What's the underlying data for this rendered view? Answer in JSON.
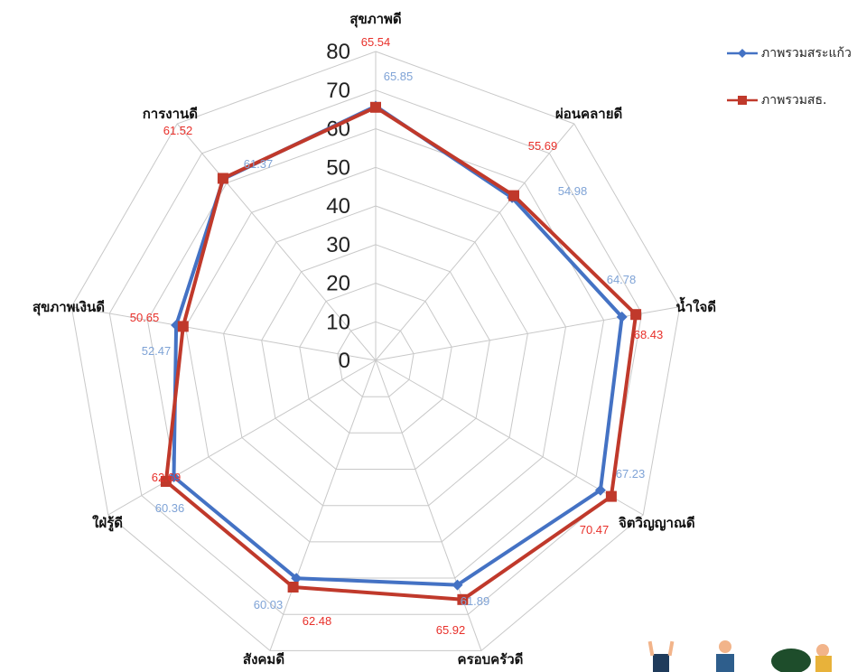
{
  "chart_data": {
    "type": "radar",
    "categories": [
      "สุขภาพดี",
      "ผ่อนคลายดี",
      "น้ำใจดี",
      "จิตวิญญาณดี",
      "ครอบครัวดี",
      "สังคมดี",
      "ใฝ่รู้ดี",
      "สุขภาพเงินดี",
      "การงานดี"
    ],
    "radial_ticks": [
      "0",
      "10",
      "20",
      "30",
      "40",
      "50",
      "60",
      "70",
      "80"
    ],
    "rlim": [
      0,
      80
    ],
    "grid": true,
    "legend_position": "top-right",
    "series": [
      {
        "name": "ภาพรวมสระแก้ว",
        "color": "#4472C4",
        "label_color": "#7FA3D6",
        "marker": "diamond",
        "values": [
          65.85,
          54.98,
          64.78,
          67.23,
          61.89,
          60.03,
          60.36,
          52.47,
          61.37
        ],
        "value_labels": [
          "65.85",
          "54.98",
          "64.78",
          "67.23",
          "61.89",
          "60.03",
          "60.36",
          "52.47",
          "61.37"
        ]
      },
      {
        "name": "ภาพรวมสธ.",
        "color": "#C0392B",
        "label_color": "#E8302A",
        "marker": "square",
        "values": [
          65.54,
          55.69,
          68.43,
          70.47,
          65.92,
          62.48,
          62.69,
          50.65,
          61.52
        ],
        "value_labels": [
          "65.54",
          "55.69",
          "68.43",
          "70.47",
          "65.92",
          "62.48",
          "62.69",
          "50.65",
          "61.52"
        ]
      }
    ]
  }
}
